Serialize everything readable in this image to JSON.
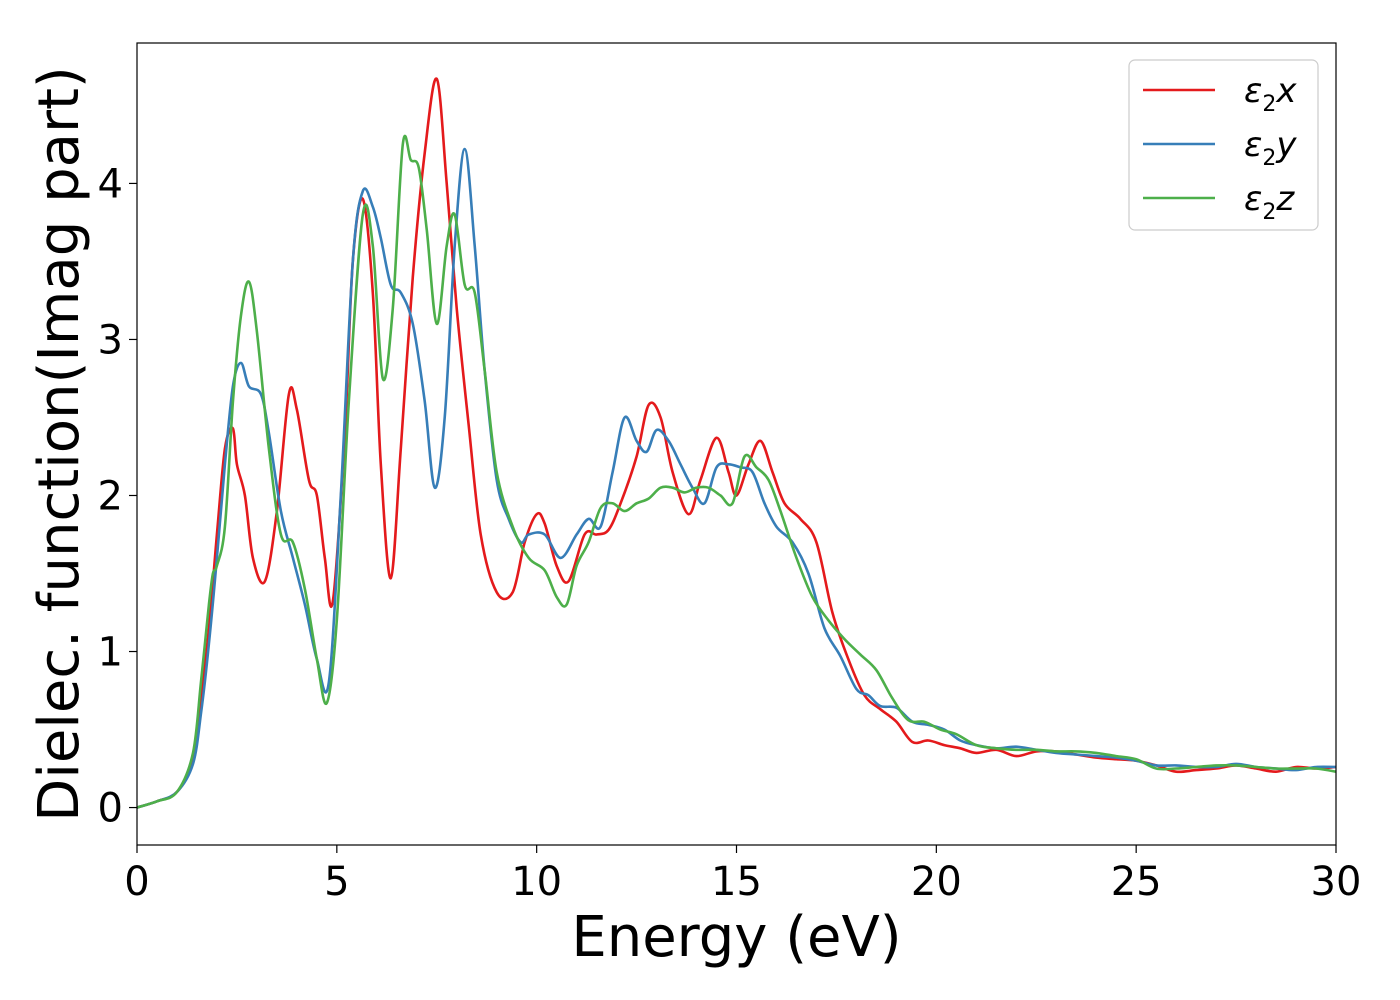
{
  "chart_data": {
    "type": "line",
    "title": "",
    "xlabel": "Energy (eV)",
    "ylabel": "Dielec. function(Imag part)",
    "xlim": [
      0,
      30
    ],
    "ylim": [
      -0.24,
      4.9
    ],
    "xticks": [
      0,
      5,
      10,
      15,
      20,
      25,
      30
    ],
    "yticks": [
      0,
      1,
      2,
      3,
      4
    ],
    "grid": false,
    "legend_position": "top-right",
    "series": [
      {
        "name": "ε2x",
        "legend_base": "ε",
        "legend_sub": "2",
        "legend_var": "x",
        "color": "#e41a1c",
        "x": [
          0,
          0.5,
          1.0,
          1.4,
          1.6,
          1.8,
          2.0,
          2.2,
          2.4,
          2.5,
          2.7,
          2.9,
          3.2,
          3.5,
          3.8,
          4.0,
          4.3,
          4.5,
          4.7,
          4.9,
          5.2,
          5.4,
          5.65,
          5.9,
          6.1,
          6.35,
          6.6,
          6.9,
          7.2,
          7.5,
          7.75,
          8.0,
          8.3,
          8.6,
          9.0,
          9.4,
          9.7,
          10.0,
          10.2,
          10.5,
          10.8,
          11.2,
          11.5,
          11.8,
          12.1,
          12.5,
          12.8,
          13.1,
          13.4,
          13.8,
          14.1,
          14.5,
          14.8,
          15.0,
          15.3,
          15.6,
          15.9,
          16.2,
          16.6,
          17.0,
          17.4,
          17.8,
          18.2,
          18.6,
          19.0,
          19.4,
          19.8,
          20.2,
          20.6,
          21.0,
          21.5,
          22.0,
          22.5,
          23.0,
          23.5,
          24.0,
          24.5,
          25.0,
          25.5,
          26.0,
          26.5,
          27.0,
          27.5,
          28.0,
          28.5,
          29.0,
          29.5,
          30.0
        ],
        "y": [
          0,
          0.04,
          0.1,
          0.3,
          0.7,
          1.15,
          1.75,
          2.3,
          2.43,
          2.2,
          2.0,
          1.6,
          1.45,
          1.9,
          2.65,
          2.55,
          2.1,
          2.0,
          1.6,
          1.32,
          2.4,
          3.5,
          3.9,
          3.3,
          2.2,
          1.47,
          2.3,
          3.4,
          4.2,
          4.67,
          4.0,
          3.2,
          2.45,
          1.75,
          1.38,
          1.38,
          1.7,
          1.88,
          1.82,
          1.55,
          1.45,
          1.75,
          1.75,
          1.78,
          1.95,
          2.25,
          2.58,
          2.5,
          2.15,
          1.88,
          2.1,
          2.37,
          2.15,
          2.0,
          2.2,
          2.35,
          2.15,
          1.95,
          1.85,
          1.7,
          1.25,
          0.95,
          0.72,
          0.63,
          0.55,
          0.42,
          0.43,
          0.4,
          0.38,
          0.35,
          0.37,
          0.33,
          0.36,
          0.36,
          0.34,
          0.32,
          0.31,
          0.3,
          0.27,
          0.23,
          0.24,
          0.25,
          0.27,
          0.25,
          0.23,
          0.26,
          0.25,
          0.26
        ]
      },
      {
        "name": "ε2y",
        "legend_base": "ε",
        "legend_sub": "2",
        "legend_var": "y",
        "color": "#377eb8",
        "x": [
          0,
          0.5,
          1.0,
          1.4,
          1.6,
          1.8,
          2.0,
          2.2,
          2.4,
          2.6,
          2.8,
          3.1,
          3.3,
          3.6,
          3.9,
          4.2,
          4.5,
          4.8,
          5.1,
          5.4,
          5.65,
          5.9,
          6.1,
          6.35,
          6.6,
          6.9,
          7.2,
          7.45,
          7.7,
          7.95,
          8.2,
          8.45,
          8.7,
          9.0,
          9.3,
          9.6,
          9.8,
          10.2,
          10.6,
          11.0,
          11.3,
          11.6,
          11.9,
          12.2,
          12.5,
          12.75,
          13.0,
          13.3,
          13.6,
          13.9,
          14.2,
          14.5,
          14.8,
          15.1,
          15.4,
          15.7,
          16.0,
          16.4,
          16.8,
          17.2,
          17.6,
          18.0,
          18.3,
          18.6,
          19.0,
          19.4,
          19.8,
          20.2,
          20.6,
          21.0,
          21.5,
          22.0,
          22.5,
          23.0,
          23.5,
          24.0,
          24.5,
          25.0,
          25.5,
          26.0,
          26.5,
          27.0,
          27.5,
          28.0,
          28.5,
          29.0,
          29.5,
          30.0
        ],
        "y": [
          0,
          0.04,
          0.1,
          0.28,
          0.6,
          1.05,
          1.6,
          2.2,
          2.7,
          2.85,
          2.7,
          2.65,
          2.4,
          1.9,
          1.6,
          1.3,
          0.95,
          0.8,
          2.0,
          3.5,
          3.95,
          3.85,
          3.65,
          3.35,
          3.3,
          3.1,
          2.6,
          2.05,
          2.5,
          3.6,
          4.22,
          3.6,
          2.8,
          2.1,
          1.85,
          1.7,
          1.75,
          1.75,
          1.6,
          1.75,
          1.85,
          1.8,
          2.15,
          2.5,
          2.35,
          2.28,
          2.42,
          2.35,
          2.2,
          2.05,
          1.95,
          2.18,
          2.2,
          2.18,
          2.15,
          1.95,
          1.8,
          1.7,
          1.5,
          1.15,
          0.97,
          0.76,
          0.72,
          0.65,
          0.64,
          0.55,
          0.53,
          0.5,
          0.43,
          0.4,
          0.38,
          0.39,
          0.37,
          0.35,
          0.34,
          0.33,
          0.32,
          0.3,
          0.27,
          0.27,
          0.26,
          0.26,
          0.28,
          0.26,
          0.25,
          0.24,
          0.26,
          0.26
        ]
      },
      {
        "name": "ε2z",
        "legend_base": "ε",
        "legend_sub": "2",
        "legend_var": "z",
        "color": "#4daf4a",
        "x": [
          0,
          0.5,
          1.0,
          1.4,
          1.6,
          1.8,
          1.9,
          2.0,
          2.2,
          2.4,
          2.6,
          2.8,
          3.0,
          3.3,
          3.6,
          3.9,
          4.2,
          4.5,
          4.75,
          5.0,
          5.3,
          5.65,
          5.9,
          6.15,
          6.4,
          6.65,
          6.85,
          7.05,
          7.25,
          7.5,
          7.75,
          7.95,
          8.2,
          8.45,
          8.7,
          9.0,
          9.4,
          9.8,
          10.2,
          10.5,
          10.75,
          11.0,
          11.3,
          11.6,
          11.9,
          12.2,
          12.5,
          12.8,
          13.1,
          13.4,
          13.7,
          14.0,
          14.3,
          14.6,
          14.9,
          15.2,
          15.5,
          15.8,
          16.1,
          16.5,
          16.9,
          17.3,
          17.7,
          18.1,
          18.5,
          18.9,
          19.3,
          19.7,
          20.1,
          20.5,
          21.0,
          21.5,
          22.0,
          22.5,
          23.0,
          23.5,
          24.0,
          24.5,
          25.0,
          25.5,
          26.0,
          26.5,
          27.0,
          27.5,
          28.0,
          28.5,
          29.0,
          29.5,
          30.0
        ],
        "y": [
          0,
          0.04,
          0.1,
          0.35,
          0.8,
          1.3,
          1.5,
          1.55,
          1.8,
          2.6,
          3.15,
          3.37,
          3.05,
          2.3,
          1.75,
          1.7,
          1.4,
          0.95,
          0.67,
          1.2,
          2.6,
          3.8,
          3.6,
          2.75,
          3.2,
          4.25,
          4.15,
          4.1,
          3.7,
          3.1,
          3.6,
          3.8,
          3.35,
          3.3,
          2.8,
          2.15,
          1.8,
          1.6,
          1.52,
          1.35,
          1.3,
          1.55,
          1.7,
          1.92,
          1.95,
          1.9,
          1.95,
          1.98,
          2.05,
          2.05,
          2.02,
          2.05,
          2.05,
          2.0,
          1.95,
          2.25,
          2.18,
          2.1,
          1.9,
          1.6,
          1.35,
          1.2,
          1.08,
          0.98,
          0.88,
          0.7,
          0.56,
          0.55,
          0.5,
          0.47,
          0.4,
          0.38,
          0.37,
          0.37,
          0.36,
          0.36,
          0.35,
          0.33,
          0.31,
          0.25,
          0.25,
          0.26,
          0.27,
          0.27,
          0.26,
          0.25,
          0.25,
          0.25,
          0.23
        ]
      }
    ]
  }
}
